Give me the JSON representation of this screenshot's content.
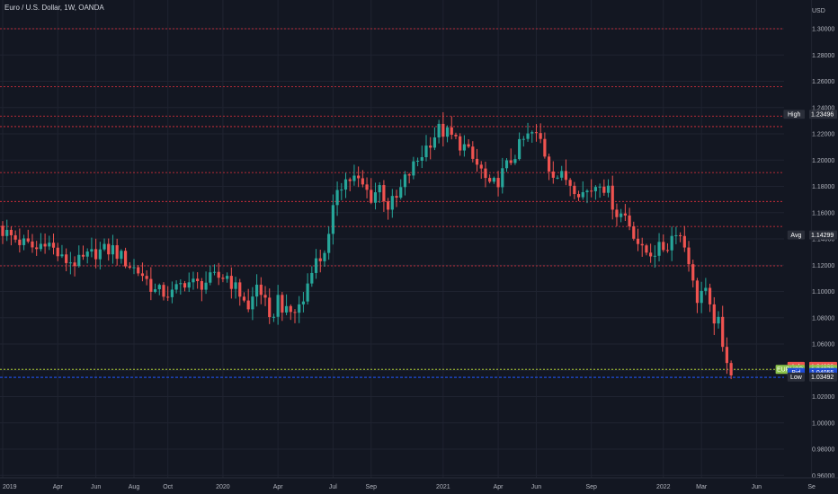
{
  "window": {
    "title": "Euro / U.S. Dollar, 1W, OANDA",
    "currency": "USD"
  },
  "colors": {
    "background": "#131722",
    "grid": "#1f2330",
    "up": "#26a69a",
    "down": "#ef5350",
    "level_line": "#e8313c",
    "price_line": "#9acd32",
    "bid_line": "#1e4bd8",
    "axis_text": "#b2b5be"
  },
  "chart_data": {
    "type": "candlestick",
    "title": "Euro / U.S. Dollar, 1W, OANDA",
    "ylabel": "USD",
    "ylim": [
      0.95,
      1.31
    ],
    "grid": true,
    "y_ticks": [
      "1.30000",
      "1.28000",
      "1.26000",
      "1.24000",
      "1.22000",
      "1.20000",
      "1.18000",
      "1.16000",
      "1.14000",
      "1.12000",
      "1.10000",
      "1.08000",
      "1.06000",
      "1.04000",
      "1.02000",
      "1.00000",
      "0.98000",
      "0.96000"
    ],
    "x_ticks": [
      {
        "label": "2019",
        "week": 0
      },
      {
        "label": "Apr",
        "week": 13
      },
      {
        "label": "Jun",
        "week": 22
      },
      {
        "label": "Aug",
        "week": 31
      },
      {
        "label": "Oct",
        "week": 39
      },
      {
        "label": "2020",
        "week": 52
      },
      {
        "label": "Apr",
        "week": 65
      },
      {
        "label": "Jul",
        "week": 78
      },
      {
        "label": "Sep",
        "week": 87
      },
      {
        "label": "2021",
        "week": 104
      },
      {
        "label": "Apr",
        "week": 117
      },
      {
        "label": "Jun",
        "week": 126
      },
      {
        "label": "Sep",
        "week": 139
      },
      {
        "label": "2022",
        "week": 156
      },
      {
        "label": "Mar",
        "week": 165
      },
      {
        "label": "Jun",
        "week": 178
      },
      {
        "label": "Se",
        "week": 191
      }
    ],
    "horizontal_levels": [
      1.3,
      1.256,
      1.2335,
      1.2255,
      1.1905,
      1.1685,
      1.1495,
      1.1195,
      1.0407
    ],
    "bid_level": 1.0346,
    "close_path": [
      [
        0,
        1.146
      ],
      [
        4,
        1.138
      ],
      [
        8,
        1.132
      ],
      [
        10,
        1.14
      ],
      [
        14,
        1.124
      ],
      [
        18,
        1.122
      ],
      [
        22,
        1.13
      ],
      [
        26,
        1.132
      ],
      [
        30,
        1.12
      ],
      [
        33,
        1.113
      ],
      [
        36,
        1.1
      ],
      [
        40,
        1.098
      ],
      [
        43,
        1.108
      ],
      [
        46,
        1.105
      ],
      [
        50,
        1.11
      ],
      [
        53,
        1.112
      ],
      [
        55,
        1.102
      ],
      [
        57,
        1.095
      ],
      [
        58,
        1.085
      ],
      [
        60,
        1.105
      ],
      [
        61,
        1.1
      ],
      [
        62,
        1.09
      ],
      [
        63,
        1.075
      ],
      [
        65,
        1.095
      ],
      [
        67,
        1.083
      ],
      [
        69,
        1.085
      ],
      [
        71,
        1.093
      ],
      [
        73,
        1.12
      ],
      [
        75,
        1.125
      ],
      [
        77,
        1.14
      ],
      [
        79,
        1.18
      ],
      [
        81,
        1.185
      ],
      [
        83,
        1.186
      ],
      [
        85,
        1.18
      ],
      [
        87,
        1.172
      ],
      [
        89,
        1.18
      ],
      [
        91,
        1.165
      ],
      [
        93,
        1.17
      ],
      [
        95,
        1.185
      ],
      [
        97,
        1.195
      ],
      [
        99,
        1.205
      ],
      [
        101,
        1.215
      ],
      [
        103,
        1.223
      ],
      [
        105,
        1.22
      ],
      [
        107,
        1.215
      ],
      [
        109,
        1.21
      ],
      [
        111,
        1.2
      ],
      [
        113,
        1.192
      ],
      [
        115,
        1.178
      ],
      [
        117,
        1.185
      ],
      [
        119,
        1.195
      ],
      [
        121,
        1.205
      ],
      [
        123,
        1.215
      ],
      [
        125,
        1.22
      ],
      [
        127,
        1.215
      ],
      [
        129,
        1.195
      ],
      [
        131,
        1.188
      ],
      [
        133,
        1.186
      ],
      [
        135,
        1.18
      ],
      [
        137,
        1.175
      ],
      [
        139,
        1.178
      ],
      [
        141,
        1.185
      ],
      [
        143,
        1.175
      ],
      [
        145,
        1.16
      ],
      [
        147,
        1.158
      ],
      [
        149,
        1.145
      ],
      [
        151,
        1.13
      ],
      [
        153,
        1.13
      ],
      [
        155,
        1.132
      ],
      [
        157,
        1.135
      ],
      [
        158,
        1.142
      ],
      [
        159,
        1.148
      ],
      [
        160,
        1.142
      ],
      [
        161,
        1.135
      ],
      [
        162,
        1.125
      ],
      [
        163,
        1.105
      ],
      [
        164,
        1.095
      ],
      [
        165,
        1.1
      ],
      [
        166,
        1.098
      ],
      [
        167,
        1.085
      ],
      [
        168,
        1.08
      ],
      [
        169,
        1.075
      ],
      [
        170,
        1.055
      ],
      [
        171,
        1.05
      ],
      [
        172,
        1.04
      ]
    ],
    "price_labels": [
      {
        "tag": "High",
        "value": "1.23496",
        "color": "#2a2e39",
        "level": 1.2349
      },
      {
        "tag": "Avg",
        "value": "1.14299",
        "color": "#2a2e39",
        "level": 1.143
      },
      {
        "tag": "Ask",
        "value": "1.04089",
        "color": "#ef5350",
        "level": 1.043
      },
      {
        "tag": "EURUSD",
        "value": "1.04072",
        "color": "#8bc34a",
        "level": 1.0407
      },
      {
        "tag": "Bid",
        "value": "1.04055",
        "color": "#1e4bd8",
        "level": 1.0384
      },
      {
        "tag": "Low",
        "value": "1.03492",
        "color": "#2a2e39",
        "level": 1.0349
      }
    ]
  }
}
